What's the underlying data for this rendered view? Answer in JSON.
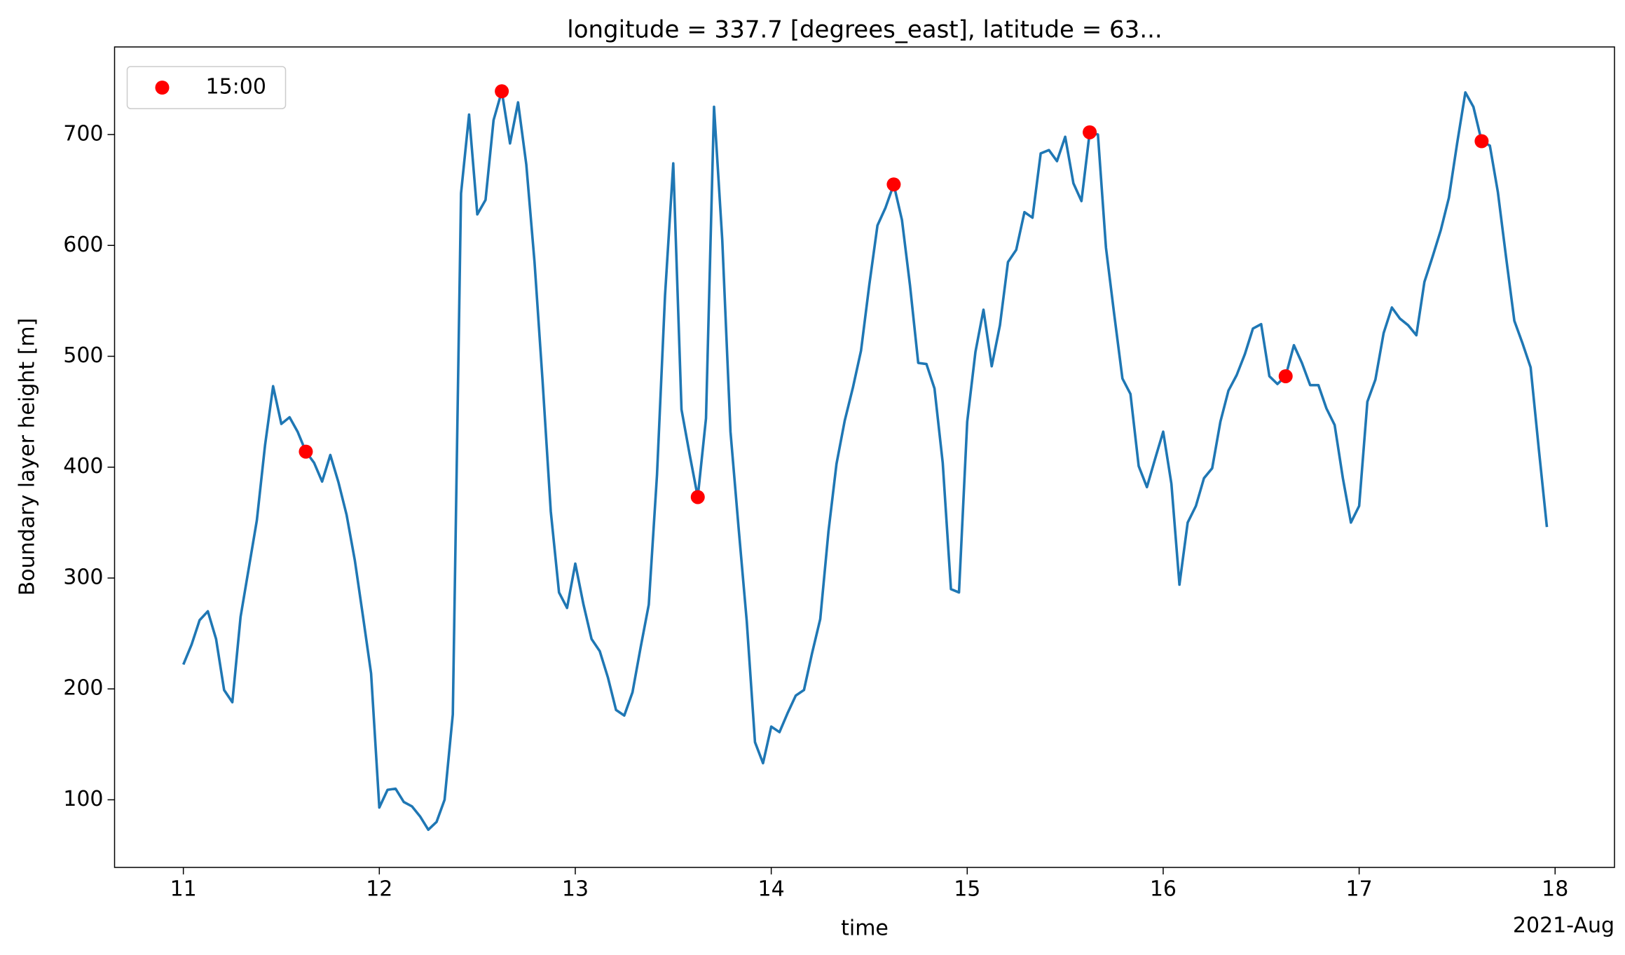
{
  "chart_data": {
    "type": "line",
    "title": "longitude = 337.7 [degrees_east], latitude = 63...",
    "xlabel": "time",
    "ylabel": "Boundary layer height [m]",
    "x_offset_label": "2021-Aug",
    "xlim": [
      10.649,
      18.303
    ],
    "ylim": [
      39,
      779
    ],
    "xticks": [
      11,
      12,
      13,
      14,
      15,
      16,
      17,
      18
    ],
    "yticks": [
      100,
      200,
      300,
      400,
      500,
      600,
      700
    ],
    "legend": "upper left",
    "series": [
      {
        "color": "#1f77b4",
        "x": [
          11,
          11.042,
          11.083,
          11.125,
          11.167,
          11.208,
          11.25,
          11.292,
          11.333,
          11.375,
          11.417,
          11.458,
          11.5,
          11.542,
          11.583,
          11.625,
          11.667,
          11.708,
          11.75,
          11.792,
          11.833,
          11.875,
          11.917,
          11.958,
          12,
          12.042,
          12.083,
          12.125,
          12.167,
          12.208,
          12.25,
          12.292,
          12.333,
          12.375,
          12.417,
          12.458,
          12.5,
          12.542,
          12.583,
          12.625,
          12.667,
          12.708,
          12.75,
          12.792,
          12.833,
          12.875,
          12.917,
          12.958,
          13,
          13.042,
          13.083,
          13.125,
          13.167,
          13.208,
          13.25,
          13.292,
          13.333,
          13.375,
          13.417,
          13.458,
          13.5,
          13.542,
          13.583,
          13.625,
          13.667,
          13.708,
          13.75,
          13.792,
          13.833,
          13.875,
          13.917,
          13.958,
          14,
          14.042,
          14.083,
          14.125,
          14.167,
          14.208,
          14.25,
          14.292,
          14.333,
          14.375,
          14.417,
          14.458,
          14.5,
          14.542,
          14.583,
          14.625,
          14.667,
          14.708,
          14.75,
          14.792,
          14.833,
          14.875,
          14.917,
          14.958,
          15,
          15.042,
          15.083,
          15.125,
          15.167,
          15.208,
          15.25,
          15.292,
          15.333,
          15.375,
          15.417,
          15.458,
          15.5,
          15.542,
          15.583,
          15.625,
          15.667,
          15.708,
          15.75,
          15.792,
          15.833,
          15.875,
          15.917,
          15.958,
          16,
          16.042,
          16.083,
          16.125,
          16.167,
          16.208,
          16.25,
          16.292,
          16.333,
          16.375,
          16.417,
          16.458,
          16.5,
          16.542,
          16.583,
          16.625,
          16.667,
          16.708,
          16.75,
          16.792,
          16.833,
          16.875,
          16.917,
          16.958,
          17,
          17.042,
          17.083,
          17.125,
          17.167,
          17.208,
          17.25,
          17.292,
          17.333,
          17.375,
          17.417,
          17.458,
          17.5,
          17.542,
          17.583,
          17.625,
          17.667,
          17.708,
          17.75,
          17.792,
          17.833,
          17.875,
          17.917,
          17.958
        ],
        "values": [
          222,
          240,
          262,
          270,
          245,
          199,
          188,
          265,
          308,
          352,
          420,
          473,
          439,
          445,
          432,
          414,
          404,
          387,
          411,
          386,
          357,
          316,
          265,
          214,
          93,
          109,
          110,
          98,
          94,
          85,
          73,
          80,
          100,
          177,
          647,
          718,
          628,
          641,
          713,
          739,
          692,
          729,
          673,
          585,
          478,
          360,
          287,
          273,
          313,
          276,
          245,
          234,
          210,
          181,
          176,
          197,
          237,
          276,
          393,
          555,
          674,
          452,
          412,
          373,
          444,
          725,
          605,
          432,
          346,
          261,
          152,
          133,
          166,
          161,
          178,
          194,
          199,
          232,
          263,
          342,
          403,
          442,
          472,
          505,
          564,
          618,
          634,
          655,
          623,
          564,
          494,
          493,
          471,
          404,
          290,
          287,
          441,
          504,
          542,
          491,
          528,
          585,
          596,
          630,
          625,
          683,
          686,
          676,
          698,
          656,
          640,
          702,
          700,
          598,
          538,
          480,
          466,
          401,
          382,
          407,
          432,
          385,
          294,
          350,
          365,
          390,
          399,
          441,
          469,
          483,
          502,
          525,
          529,
          482,
          475,
          482,
          510,
          494,
          474,
          474,
          453,
          438,
          390,
          350,
          365,
          459,
          479,
          521,
          544,
          534,
          528,
          519,
          567,
          590,
          614,
          643,
          692,
          738,
          725,
          694,
          690,
          648,
          589,
          532,
          512,
          490,
          416,
          346
        ]
      },
      {
        "name": "15:00",
        "type": "scatter",
        "color": "#ff0000",
        "x": [
          11.625,
          12.625,
          13.625,
          14.625,
          15.625,
          16.625,
          17.625
        ],
        "values": [
          414,
          739,
          373,
          655,
          702,
          482,
          694
        ]
      }
    ]
  }
}
